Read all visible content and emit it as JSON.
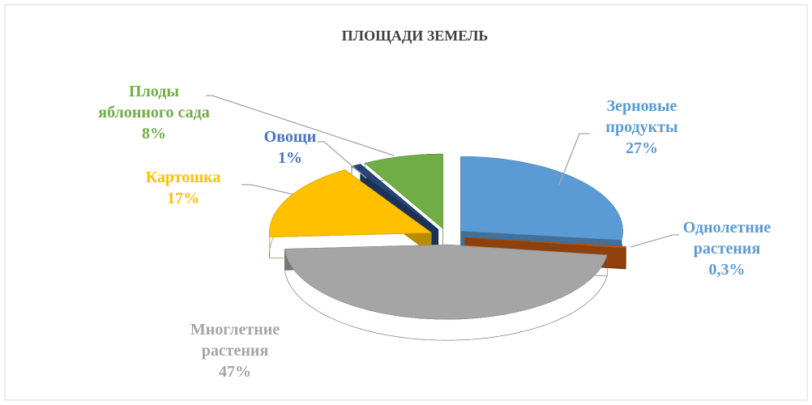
{
  "chart_data": {
    "type": "pie3d",
    "title": "ПЛОЩАДИ ЗЕМЕЛЬ",
    "categories": [
      "Зерновые продукты",
      "Однолетние растения",
      "Многлетние растения",
      "Картошка",
      "Овощи",
      "Плоды яблонного сада"
    ],
    "values": [
      27,
      0.3,
      47,
      17,
      1,
      8
    ],
    "value_labels": [
      "27%",
      "0,3%",
      "47%",
      "17%",
      "1%",
      "8%"
    ],
    "colors": [
      "#5b9bd5",
      "#c55a11",
      "#a5a5a5",
      "#ffc000",
      "#264478",
      "#70ad47"
    ],
    "label_colors": [
      "#5b9bd5",
      "#5b9bd5",
      "#a5a5a5",
      "#ffc000",
      "#4472c4",
      "#70ad47"
    ]
  }
}
